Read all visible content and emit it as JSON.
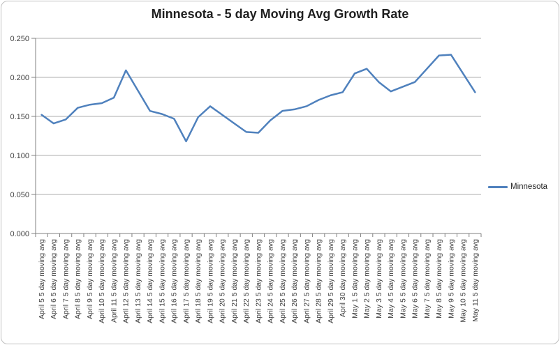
{
  "window": {
    "background": "#FFFFFF",
    "border_color": "#BFBFBF"
  },
  "legend": {
    "label": "Minnesota"
  },
  "chart_data": {
    "type": "line",
    "title": "Minnesota - 5 day Moving Avg Growth Rate",
    "title_color": "#1F1F1F",
    "xlabel": "",
    "ylabel": "",
    "ylim": [
      0,
      0.25
    ],
    "ytick_step": 0.05,
    "ytick_labels": [
      "0.000",
      "0.050",
      "0.100",
      "0.150",
      "0.200",
      "0.250"
    ],
    "grid": true,
    "legend_position": "right",
    "axis_color": "#808080",
    "gridline_color": "#ADADAD",
    "label_color": "#3F3F3F",
    "categories": [
      "April 5 5 day moving avg",
      "April 6 5 day moving avg",
      "April 7 5 day moving avg",
      "April 8 5 day moving avg",
      "April 9 5 day moving avg",
      "April 10 5 day moving avg",
      "April 11 5 day moving avg",
      "April 12 5 day moving avg",
      "April 13 5 day moving avg",
      "April 14 5 day moving avg",
      "April 15 5 day moving avg",
      "April 16 5 day moving avg",
      "April 17 5 day moving avg",
      "April 18 5 day moving avg",
      "April 19 5 day moving avg",
      "April 20 5 day moving avg",
      "April 21 5 day moving avg",
      "April 22 5 day moving avg",
      "April 23 5 day moving avg",
      "April 24 5 day moving avg",
      "April 25 5 day moving avg",
      "April 26 5 day moving avg",
      "April 27 5 day moving avg",
      "April 28 5 day moving avg",
      "April 29 5 day moving avg",
      "April 30 day moving avg",
      "May 1 5 day moving avg",
      "May 2 5 day moving avg",
      "May 3 5 day moving avg",
      "May 4 5 day moving avg",
      "May 5 5 day moving avg",
      "May 6 5 day moving avg",
      "May 7 5 day moving avg",
      "May 8 5 day moving avg",
      "May 9 5 day moving avg",
      "May 10 5 day moving avg",
      "May 11 5 day moving avg"
    ],
    "series": [
      {
        "name": "Minnesota",
        "color": "#4F81BD",
        "values": [
          0.152,
          0.141,
          0.146,
          0.161,
          0.165,
          0.167,
          0.174,
          0.209,
          0.183,
          0.157,
          0.153,
          0.147,
          0.118,
          0.149,
          0.163,
          0.152,
          0.141,
          0.13,
          0.129,
          0.145,
          0.157,
          0.159,
          0.163,
          0.171,
          0.177,
          0.181,
          0.205,
          0.211,
          0.194,
          0.182,
          0.188,
          0.194,
          0.211,
          0.228,
          0.229,
          0.205,
          0.181
        ]
      }
    ]
  }
}
